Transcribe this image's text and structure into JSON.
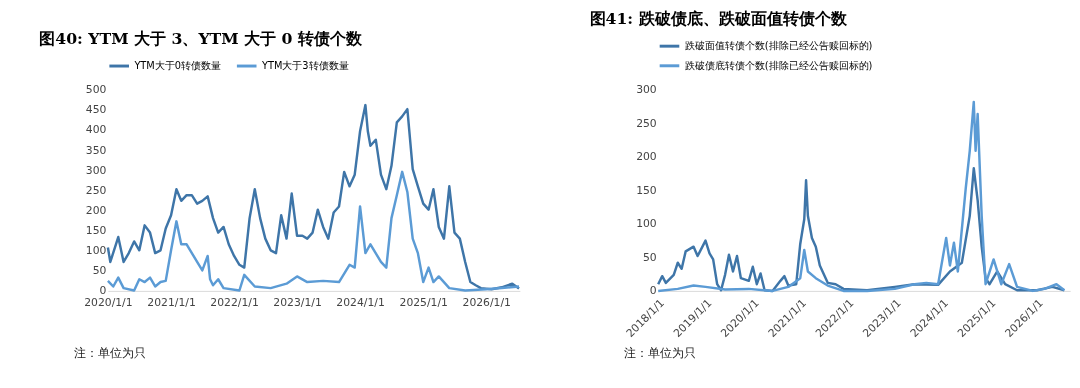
{
  "chart_data": [
    {
      "type": "line",
      "title": "图40: YTM 大于 3、YTM 大于 0 转债个数",
      "annotations": [
        "注：单位为只"
      ],
      "legend": "top",
      "grid": false,
      "xlim": [
        "2020-01-01",
        "2026-07-15"
      ],
      "ylim": [
        0,
        500
      ],
      "yticks": [
        0,
        50,
        100,
        150,
        200,
        250,
        300,
        350,
        400,
        450,
        500
      ],
      "xticks": [
        {
          "value": "2020-01-01",
          "label": "2020/1/1"
        },
        {
          "value": "2021-01-01",
          "label": "2021/1/1"
        },
        {
          "value": "2022-01-01",
          "label": "2022/1/1"
        },
        {
          "value": "2023-01-01",
          "label": "2023/1/1"
        },
        {
          "value": "2024-01-01",
          "label": "2024/1/1"
        },
        {
          "value": "2025-01-01",
          "label": "2025/1/1"
        },
        {
          "value": "2026-01-01",
          "label": "2026/1/1"
        }
      ],
      "series": [
        {
          "name": "YTM大于0转债数量",
          "color": "#3e75a8",
          "x": [
            "2020-01-01",
            "2020-01-15",
            "2020-03-01",
            "2020-04-01",
            "2020-05-01",
            "2020-06-01",
            "2020-07-01",
            "2020-08-01",
            "2020-09-01",
            "2020-10-01",
            "2020-11-01",
            "2020-12-01",
            "2021-01-01",
            "2021-02-01",
            "2021-03-01",
            "2021-04-01",
            "2021-05-01",
            "2021-06-01",
            "2021-07-01",
            "2021-08-01",
            "2021-09-01",
            "2021-10-01",
            "2021-11-01",
            "2021-12-01",
            "2022-01-01",
            "2022-02-01",
            "2022-03-01",
            "2022-04-01",
            "2022-05-01",
            "2022-06-01",
            "2022-07-01",
            "2022-08-01",
            "2022-09-01",
            "2022-10-01",
            "2022-11-01",
            "2022-12-01",
            "2023-01-01",
            "2023-02-01",
            "2023-03-01",
            "2023-04-01",
            "2023-05-01",
            "2023-06-01",
            "2023-07-01",
            "2023-08-01",
            "2023-09-01",
            "2023-10-01",
            "2023-11-01",
            "2023-12-01",
            "2024-01-01",
            "2024-02-01",
            "2024-02-15",
            "2024-03-01",
            "2024-04-01",
            "2024-05-01",
            "2024-06-01",
            "2024-07-01",
            "2024-08-01",
            "2024-09-01",
            "2024-10-01",
            "2024-11-01",
            "2024-12-01",
            "2025-01-01",
            "2025-02-01",
            "2025-03-01",
            "2025-04-01",
            "2025-05-01",
            "2025-06-01",
            "2025-07-01",
            "2025-08-01",
            "2025-09-01",
            "2025-10-01",
            "2025-11-01",
            "2025-12-01",
            "2026-02-01",
            "2026-04-01",
            "2026-06-01",
            "2026-07-10"
          ],
          "values": [
            108,
            72,
            134,
            72,
            94,
            123,
            101,
            163,
            145,
            94,
            101,
            155,
            188,
            253,
            224,
            238,
            238,
            217,
            224,
            235,
            181,
            145,
            159,
            116,
            87,
            65,
            58,
            181,
            253,
            181,
            130,
            101,
            94,
            188,
            130,
            242,
            137,
            137,
            130,
            145,
            202,
            159,
            130,
            195,
            210,
            296,
            260,
            289,
            397,
            462,
            397,
            361,
            376,
            289,
            253,
            311,
            419,
            434,
            452,
            303,
            260,
            217,
            202,
            253,
            159,
            130,
            260,
            145,
            130,
            72,
            22,
            14,
            7,
            4,
            9,
            18,
            6
          ]
        },
        {
          "name": "YTM大于3转债数量",
          "color": "#5b9bd5",
          "x": [
            "2020-01-01",
            "2020-02-01",
            "2020-03-01",
            "2020-04-01",
            "2020-06-01",
            "2020-07-01",
            "2020-08-01",
            "2020-09-01",
            "2020-10-01",
            "2020-11-01",
            "2020-12-01",
            "2021-01-01",
            "2021-02-01",
            "2021-03-01",
            "2021-04-01",
            "2021-06-01",
            "2021-07-01",
            "2021-08-01",
            "2021-08-15",
            "2021-09-01",
            "2021-10-01",
            "2021-11-01",
            "2022-02-01",
            "2022-03-01",
            "2022-05-01",
            "2022-08-01",
            "2022-11-01",
            "2023-01-01",
            "2023-03-01",
            "2023-06-01",
            "2023-09-01",
            "2023-11-01",
            "2023-12-01",
            "2024-01-01",
            "2024-02-01",
            "2024-03-01",
            "2024-05-01",
            "2024-06-01",
            "2024-07-01",
            "2024-08-01",
            "2024-09-01",
            "2024-10-01",
            "2024-11-01",
            "2024-12-01",
            "2025-01-01",
            "2025-02-01",
            "2025-03-01",
            "2025-04-01",
            "2025-06-01",
            "2025-09-01",
            "2026-01-01",
            "2026-04-01",
            "2026-07-10"
          ],
          "values": [
            25,
            11,
            33,
            7,
            1,
            29,
            22,
            33,
            11,
            22,
            25,
            101,
            173,
            116,
            116,
            72,
            51,
            87,
            29,
            14,
            29,
            7,
            1,
            40,
            11,
            7,
            18,
            36,
            22,
            25,
            22,
            65,
            58,
            210,
            94,
            116,
            72,
            58,
            181,
            238,
            296,
            246,
            130,
            94,
            22,
            58,
            22,
            36,
            7,
            1,
            4,
            7,
            11
          ]
        }
      ]
    },
    {
      "type": "line",
      "title": "图41: 跌破债底、跌破面值转债个数",
      "legend": "top",
      "grid": false,
      "xlim": [
        "2018-01-01",
        "2026-09-15"
      ],
      "ylim": [
        0,
        300
      ],
      "yticks": [
        0,
        50,
        100,
        150,
        200,
        250,
        300
      ],
      "xticks": [
        {
          "value": "2018-01-01",
          "label": "2018/1/1"
        },
        {
          "value": "2019-01-01",
          "label": "2019/1/1"
        },
        {
          "value": "2020-01-01",
          "label": "2020/1/1"
        },
        {
          "value": "2021-01-01",
          "label": "2021/1/1"
        },
        {
          "value": "2022-01-01",
          "label": "2022/1/1"
        },
        {
          "value": "2023-01-01",
          "label": "2023/1/1"
        },
        {
          "value": "2024-01-01",
          "label": "2024/1/1"
        },
        {
          "value": "2025-01-01",
          "label": "2025/1/1"
        },
        {
          "value": "2026-01-01",
          "label": "2026/1/1"
        }
      ],
      "annotations": [
        "注：单位为只"
      ],
      "series": [
        {
          "name": "跌破面值转债个数(排除已经公告赎回标的)",
          "color": "#3e75a8",
          "x": [
            "2018-01-01",
            "2018-02-01",
            "2018-03-01",
            "2018-05-01",
            "2018-06-01",
            "2018-07-01",
            "2018-08-01",
            "2018-10-01",
            "2018-11-01",
            "2019-01-01",
            "2019-02-01",
            "2019-03-01",
            "2019-04-01",
            "2019-05-01",
            "2019-06-01",
            "2019-07-01",
            "2019-08-01",
            "2019-09-01",
            "2019-10-01",
            "2019-12-01",
            "2020-01-01",
            "2020-02-01",
            "2020-03-01",
            "2020-04-01",
            "2020-06-01",
            "2020-08-01",
            "2020-09-01",
            "2020-10-01",
            "2020-12-01",
            "2021-01-01",
            "2021-02-01",
            "2021-02-15",
            "2021-03-01",
            "2021-04-01",
            "2021-05-01",
            "2021-06-01",
            "2021-08-01",
            "2021-10-01",
            "2021-12-01",
            "2022-06-01",
            "2023-01-01",
            "2023-06-01",
            "2023-12-01",
            "2024-03-01",
            "2024-06-01",
            "2024-08-01",
            "2024-09-01",
            "2024-10-01",
            "2024-11-01",
            "2024-12-01",
            "2025-01-01",
            "2025-03-01",
            "2025-05-01",
            "2025-08-01",
            "2026-01-01",
            "2026-05-01",
            "2026-08-01"
          ],
          "values": [
            10,
            22,
            12,
            24,
            42,
            33,
            59,
            66,
            52,
            75,
            56,
            47,
            10,
            1,
            24,
            54,
            29,
            52,
            19,
            15,
            36,
            10,
            26,
            1,
            0,
            15,
            22,
            8,
            10,
            70,
            107,
            165,
            112,
            79,
            66,
            38,
            12,
            10,
            3,
            1,
            6,
            10,
            9,
            29,
            42,
            112,
            183,
            135,
            66,
            19,
            10,
            29,
            10,
            1,
            1,
            6,
            1
          ]
        },
        {
          "name": "跌破债底转债个数(排除已经公告赎回标的)",
          "color": "#5b9bd5",
          "x": [
            "2018-01-01",
            "2018-06-01",
            "2018-10-01",
            "2019-01-01",
            "2019-06-01",
            "2019-12-01",
            "2020-06-01",
            "2020-10-01",
            "2021-01-01",
            "2021-02-01",
            "2021-03-01",
            "2021-05-01",
            "2021-08-01",
            "2021-12-01",
            "2022-06-01",
            "2023-01-01",
            "2023-06-01",
            "2023-09-01",
            "2023-12-01",
            "2024-02-01",
            "2024-03-01",
            "2024-04-01",
            "2024-05-01",
            "2024-07-01",
            "2024-08-01",
            "2024-09-01",
            "2024-09-15",
            "2024-10-01",
            "2024-11-01",
            "2024-12-01",
            "2025-02-01",
            "2025-04-01",
            "2025-06-01",
            "2025-08-01",
            "2025-12-01",
            "2026-03-01",
            "2026-06-01",
            "2026-08-01"
          ],
          "values": [
            0,
            3,
            8,
            6,
            2,
            3,
            0,
            6,
            19,
            61,
            29,
            19,
            8,
            0,
            0,
            3,
            10,
            12,
            10,
            79,
            38,
            72,
            29,
            153,
            209,
            282,
            209,
            264,
            112,
            10,
            47,
            10,
            40,
            6,
            0,
            3,
            10,
            1
          ]
        }
      ]
    }
  ]
}
